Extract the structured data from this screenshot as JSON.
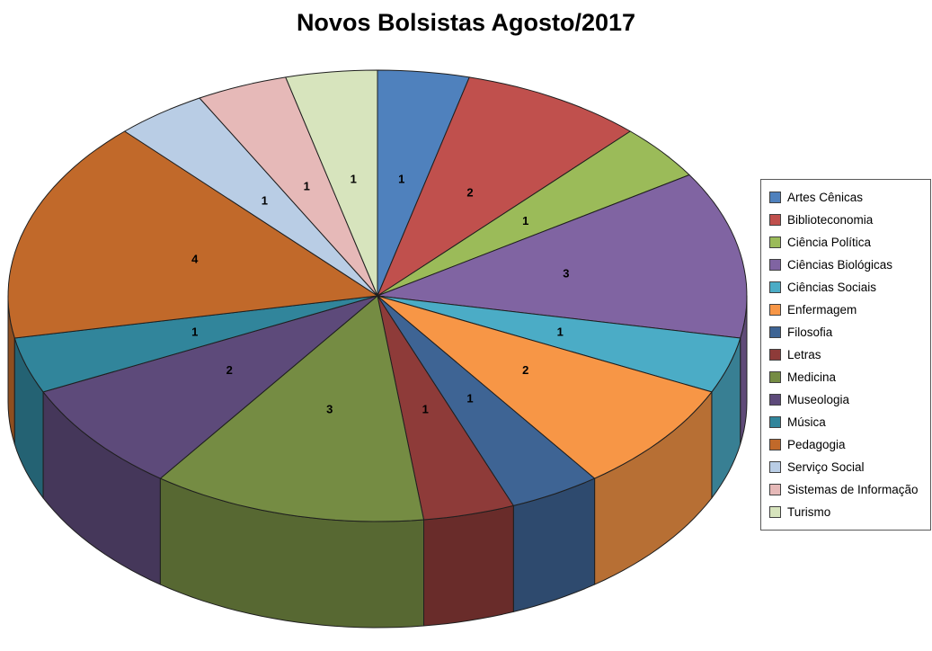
{
  "chart_data": {
    "type": "pie",
    "is_3d": true,
    "title": "Novos Bolsistas Agosto/2017",
    "categories": [
      "Artes Cênicas",
      "Biblioteconomia",
      "Ciência Política",
      "Ciências Biológicas",
      "Ciências Sociais",
      "Enfermagem",
      "Filosofia",
      "Letras",
      "Medicina",
      "Museologia",
      "Música",
      "Pedagogia",
      "Serviço Social",
      "Sistemas de Informação",
      "Turismo"
    ],
    "values": [
      1,
      2,
      1,
      3,
      1,
      2,
      1,
      1,
      3,
      2,
      1,
      4,
      1,
      1,
      1
    ],
    "colors": [
      "#4F81BD",
      "#C0504D",
      "#9BBB59",
      "#8064A2",
      "#4BACC6",
      "#F79646",
      "#3E6494",
      "#8E3B39",
      "#758C43",
      "#5D4A7A",
      "#31859B",
      "#C1692A",
      "#B9CDE5",
      "#E6B9B8",
      "#D7E4BD"
    ],
    "start_angle_deg": 0,
    "direction": "clockwise",
    "labels_show": "value",
    "legend_position": "right",
    "total": 25
  }
}
